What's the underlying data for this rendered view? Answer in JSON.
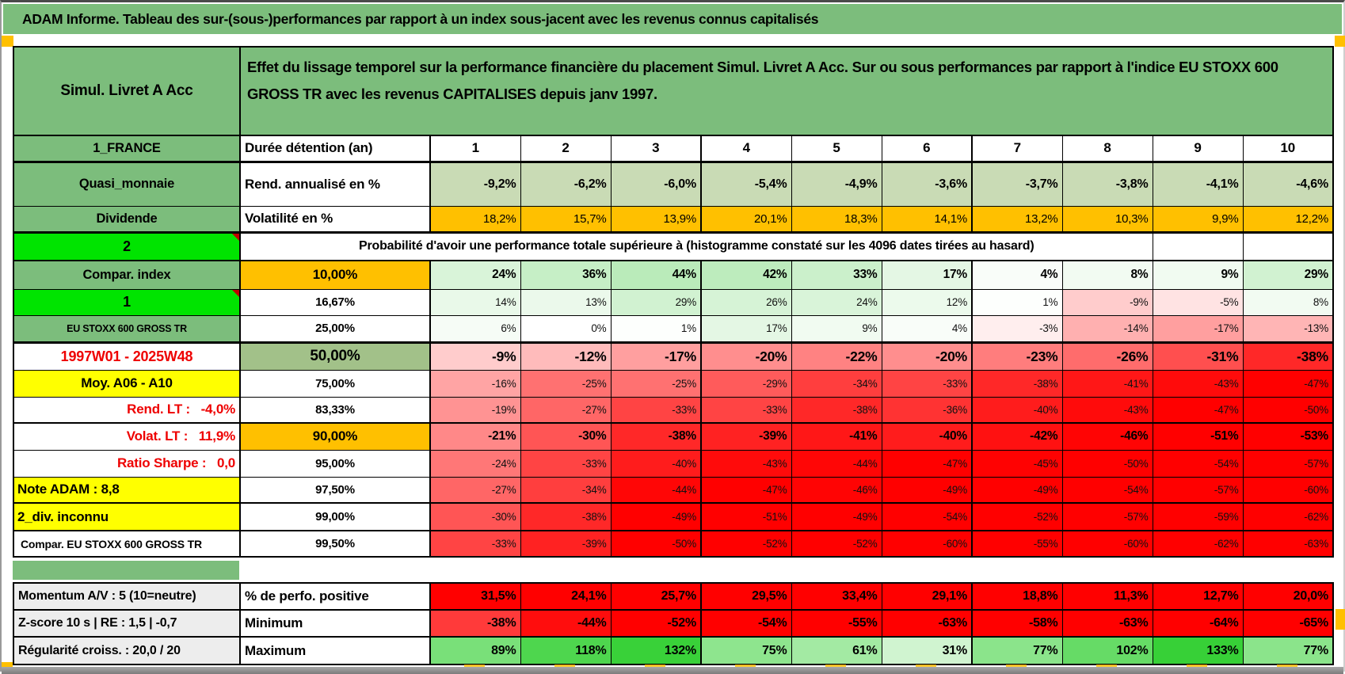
{
  "title": "ADAM Informe. Tableau des sur-(sous-)performances par rapport à un index sous-jacent avec les revenus connus capitalisés",
  "accent_colors": {
    "header_green": "#7CBD7C",
    "bright_green": "#00E400",
    "orange": "#FFC000",
    "yellow": "#FFFF00",
    "muted_green": "#A2C189",
    "negative_red": "#FF0000",
    "label_gray": "#EDEDED"
  },
  "header": {
    "product": "Simul. Livret A Acc",
    "description": "Effet du lissage temporel sur la performance financière du placement Simul. Livret A Acc. Sur ou sous performances par rapport à l'indice EU STOXX 600 GROSS TR avec les revenus CAPITALISES depuis janv 1997."
  },
  "durations": {
    "label": "1_FRANCE",
    "name": "Durée détention (an)",
    "values": [
      "1",
      "2",
      "3",
      "4",
      "5",
      "6",
      "7",
      "8",
      "9",
      "10"
    ]
  },
  "annual_return": {
    "label": "Quasi_monnaie",
    "name": "Rend. annualisé en %",
    "bg": "#C9DBB5",
    "values": [
      "-9,2%",
      "-6,2%",
      "-6,0%",
      "-5,4%",
      "-4,9%",
      "-3,6%",
      "-3,7%",
      "-3,8%",
      "-4,1%",
      "-4,6%"
    ]
  },
  "volatility": {
    "label": "Dividende",
    "name": "Volatilité en %",
    "bg": "#FFC000",
    "values": [
      "18,2%",
      "15,7%",
      "13,9%",
      "20,1%",
      "18,3%",
      "14,1%",
      "13,2%",
      "10,3%",
      "9,9%",
      "12,2%"
    ]
  },
  "probability_header": {
    "label": "2",
    "text": "Probabilité d'avoir une performance totale supérieure à (histogramme constaté sur les 4096 dates tirées au hasard)"
  },
  "probability_rows": [
    {
      "label": "Compar. index",
      "lcls": "lab-green",
      "pct": "10,00%",
      "pcls": "pct-orange",
      "w": "em",
      "cells": [
        [
          "24%",
          "#D9F4D9"
        ],
        [
          "36%",
          "#C6EFC6"
        ],
        [
          "44%",
          "#BAEBBA"
        ],
        [
          "42%",
          "#BDECBD"
        ],
        [
          "33%",
          "#CBF0CB"
        ],
        [
          "17%",
          "#E4F7E4"
        ],
        [
          "4%",
          "#F9FDF9"
        ],
        [
          "8%",
          "#F2FBF2"
        ],
        [
          "9%",
          "#F1FBF1"
        ],
        [
          "29%",
          "#D1F2D1"
        ]
      ]
    },
    {
      "label": "1",
      "lcls": "lab-bgreen note",
      "pct": "16,67%",
      "pcls": "",
      "w": "nm",
      "cells": [
        [
          "14%",
          "#E9F9E9"
        ],
        [
          "13%",
          "#EBF9EB"
        ],
        [
          "29%",
          "#D1F2D1"
        ],
        [
          "26%",
          "#D6F3D6"
        ],
        [
          "24%",
          "#D9F4D9"
        ],
        [
          "12%",
          "#ECFAEC"
        ],
        [
          "1%",
          "#FDFFFD"
        ],
        [
          "-9%",
          "#FFCCCC"
        ],
        [
          "-5%",
          "#FFE3E3"
        ],
        [
          "8%",
          "#F2FBF2"
        ]
      ]
    },
    {
      "label": "EU STOXX 600 GROSS TR",
      "lcls": "lab-green sm",
      "pct": "25,00%",
      "pcls": "",
      "w": "nm",
      "cells": [
        [
          "6%",
          "#F6FCF6"
        ],
        [
          "0%",
          "#FFFFFF"
        ],
        [
          "1%",
          "#FDFFFD"
        ],
        [
          "17%",
          "#E4F7E4"
        ],
        [
          "9%",
          "#F1FBF1"
        ],
        [
          "4%",
          "#F9FDF9"
        ],
        [
          "-3%",
          "#FFEEEE"
        ],
        [
          "-14%",
          "#FFB0B0"
        ],
        [
          "-17%",
          "#FF9F9F"
        ],
        [
          "-13%",
          "#FFB5B5"
        ]
      ]
    },
    {
      "label": "1997W01 - 2025W48",
      "lcls": "lab-date",
      "pct": "50,00%",
      "pcls": "pct-green",
      "w": "em2",
      "cells": [
        [
          "-9%",
          "#FFCCCC"
        ],
        [
          "-12%",
          "#FFBBBB"
        ],
        [
          "-17%",
          "#FF9F9F"
        ],
        [
          "-20%",
          "#FF8E8E"
        ],
        [
          "-22%",
          "#FF8282"
        ],
        [
          "-20%",
          "#FF8E8E"
        ],
        [
          "-23%",
          "#FF7D7D"
        ],
        [
          "-26%",
          "#FF6C6C"
        ],
        [
          "-31%",
          "#FF4F4F"
        ],
        [
          "-38%",
          "#FF2828"
        ]
      ]
    },
    {
      "label": "Moy. A06 - A10",
      "lcls": "lab-yellow-c",
      "pct": "75,00%",
      "pcls": "",
      "w": "nm",
      "cells": [
        [
          "-16%",
          "#FFA4A4"
        ],
        [
          "-25%",
          "#FF7171"
        ],
        [
          "-25%",
          "#FF7171"
        ],
        [
          "-29%",
          "#FF5B5B"
        ],
        [
          "-34%",
          "#FF3E3E"
        ],
        [
          "-33%",
          "#FF4444"
        ],
        [
          "-38%",
          "#FF2828"
        ],
        [
          "-41%",
          "#FF1717"
        ],
        [
          "-43%",
          "#FF0B0B"
        ],
        [
          "-47%",
          "#FF0000"
        ]
      ]
    },
    {
      "label": "Rend. LT :   -4,0%",
      "lcls": "lab-red-r",
      "pct": "83,33%",
      "pcls": "",
      "w": "nm",
      "cells": [
        [
          "-19%",
          "#FF9393"
        ],
        [
          "-27%",
          "#FF6666"
        ],
        [
          "-33%",
          "#FF4444"
        ],
        [
          "-33%",
          "#FF4444"
        ],
        [
          "-38%",
          "#FF2828"
        ],
        [
          "-36%",
          "#FF3333"
        ],
        [
          "-40%",
          "#FF1C1C"
        ],
        [
          "-43%",
          "#FF0B0B"
        ],
        [
          "-47%",
          "#FF0000"
        ],
        [
          "-50%",
          "#FF0000"
        ]
      ]
    },
    {
      "label": "Volat. LT :   11,9%",
      "lcls": "lab-red-r",
      "pct": "90,00%",
      "pcls": "pct-orange",
      "w": "em",
      "cells": [
        [
          "-21%",
          "#FF8888"
        ],
        [
          "-30%",
          "#FF5555"
        ],
        [
          "-38%",
          "#FF2828"
        ],
        [
          "-39%",
          "#FF2222"
        ],
        [
          "-41%",
          "#FF1717"
        ],
        [
          "-40%",
          "#FF1C1C"
        ],
        [
          "-42%",
          "#FF1111"
        ],
        [
          "-46%",
          "#FF0404"
        ],
        [
          "-51%",
          "#FF0000"
        ],
        [
          "-53%",
          "#FF0000"
        ]
      ]
    },
    {
      "label": "Ratio Sharpe :   0,0",
      "lcls": "lab-red-r",
      "pct": "95,00%",
      "pcls": "",
      "w": "nm",
      "cells": [
        [
          "-24%",
          "#FF7777"
        ],
        [
          "-33%",
          "#FF4444"
        ],
        [
          "-40%",
          "#FF1C1C"
        ],
        [
          "-43%",
          "#FF0B0B"
        ],
        [
          "-44%",
          "#FF0606"
        ],
        [
          "-47%",
          "#FF0000"
        ],
        [
          "-45%",
          "#FF0202"
        ],
        [
          "-50%",
          "#FF0000"
        ],
        [
          "-54%",
          "#FF0000"
        ],
        [
          "-57%",
          "#FF0000"
        ]
      ]
    },
    {
      "label": "Note ADAM : 8,8",
      "lcls": "lab-yellow-l",
      "pct": "97,50%",
      "pcls": "",
      "w": "nm",
      "cells": [
        [
          "-27%",
          "#FF6666"
        ],
        [
          "-34%",
          "#FF3E3E"
        ],
        [
          "-44%",
          "#FF0606"
        ],
        [
          "-47%",
          "#FF0000"
        ],
        [
          "-46%",
          "#FF0404"
        ],
        [
          "-49%",
          "#FF0000"
        ],
        [
          "-49%",
          "#FF0000"
        ],
        [
          "-54%",
          "#FF0000"
        ],
        [
          "-57%",
          "#FF0000"
        ],
        [
          "-60%",
          "#FF0000"
        ]
      ]
    },
    {
      "label": "2_div. inconnu",
      "lcls": "lab-yellow-l",
      "pct": "99,00%",
      "pcls": "",
      "w": "nm",
      "cells": [
        [
          "-30%",
          "#FF5555"
        ],
        [
          "-38%",
          "#FF2828"
        ],
        [
          "-49%",
          "#FF0000"
        ],
        [
          "-51%",
          "#FF0000"
        ],
        [
          "-49%",
          "#FF0000"
        ],
        [
          "-54%",
          "#FF0000"
        ],
        [
          "-52%",
          "#FF0000"
        ],
        [
          "-57%",
          "#FF0000"
        ],
        [
          "-59%",
          "#FF0000"
        ],
        [
          "-62%",
          "#FF0000"
        ]
      ]
    },
    {
      "label": "Compar. EU STOXX 600 GROSS TR",
      "lcls": "lab-white-l",
      "pct": "99,50%",
      "pcls": "",
      "w": "nm",
      "cells": [
        [
          "-33%",
          "#FF4444"
        ],
        [
          "-39%",
          "#FF2222"
        ],
        [
          "-50%",
          "#FF0000"
        ],
        [
          "-52%",
          "#FF0000"
        ],
        [
          "-52%",
          "#FF0000"
        ],
        [
          "-60%",
          "#FF0000"
        ],
        [
          "-55%",
          "#FF0000"
        ],
        [
          "-60%",
          "#FF0000"
        ],
        [
          "-62%",
          "#FF0000"
        ],
        [
          "-63%",
          "#FF0000"
        ]
      ]
    }
  ],
  "bottom_rows": [
    {
      "label": "Momentum A/V : 5 (10=neutre)",
      "name": "% de perfo. positive",
      "cells": [
        [
          "31,5%",
          "#FF0000"
        ],
        [
          "24,1%",
          "#FF0000"
        ],
        [
          "25,7%",
          "#FF0000"
        ],
        [
          "29,5%",
          "#FF0000"
        ],
        [
          "33,4%",
          "#FF0000"
        ],
        [
          "29,1%",
          "#FF0000"
        ],
        [
          "18,8%",
          "#FF0000"
        ],
        [
          "11,3%",
          "#FF0000"
        ],
        [
          "12,7%",
          "#FF0000"
        ],
        [
          "20,0%",
          "#FF0000"
        ]
      ]
    },
    {
      "label": "Z-score 10 s | RE : 1,5 | -0,7",
      "name": "Minimum",
      "cells": [
        [
          "-38%",
          "#FF3A3A"
        ],
        [
          "-44%",
          "#FF0D0D"
        ],
        [
          "-52%",
          "#FF0000"
        ],
        [
          "-54%",
          "#FF0000"
        ],
        [
          "-55%",
          "#FF0000"
        ],
        [
          "-63%",
          "#FF0000"
        ],
        [
          "-58%",
          "#FF0000"
        ],
        [
          "-63%",
          "#FF0000"
        ],
        [
          "-64%",
          "#FF0000"
        ],
        [
          "-65%",
          "#FF0000"
        ]
      ]
    },
    {
      "label": "Régularité croiss. : 20,0 / 20",
      "name": "Maximum",
      "cells": [
        [
          "89%",
          "#79E079"
        ],
        [
          "118%",
          "#4ED64E"
        ],
        [
          "132%",
          "#39D139"
        ],
        [
          "75%",
          "#8EE58E"
        ],
        [
          "61%",
          "#A3EAA3"
        ],
        [
          "31%",
          "#D0F4D0"
        ],
        [
          "77%",
          "#8BE48B"
        ],
        [
          "102%",
          "#66DB66"
        ],
        [
          "133%",
          "#37D037"
        ],
        [
          "77%",
          "#8BE48B"
        ]
      ]
    }
  ]
}
